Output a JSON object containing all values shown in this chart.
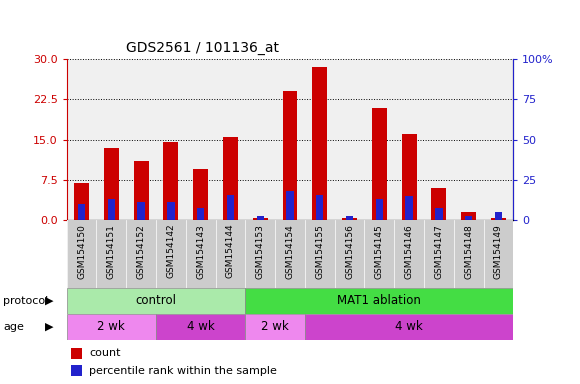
{
  "title": "GDS2561 / 101136_at",
  "samples": [
    "GSM154150",
    "GSM154151",
    "GSM154152",
    "GSM154142",
    "GSM154143",
    "GSM154144",
    "GSM154153",
    "GSM154154",
    "GSM154155",
    "GSM154156",
    "GSM154145",
    "GSM154146",
    "GSM154147",
    "GSM154148",
    "GSM154149"
  ],
  "count_values": [
    7.0,
    13.5,
    11.0,
    14.5,
    9.5,
    15.5,
    0.5,
    24.0,
    28.5,
    0.5,
    21.0,
    16.0,
    6.0,
    1.5,
    0.5
  ],
  "percentile_values": [
    10.0,
    13.0,
    11.5,
    11.5,
    8.0,
    16.0,
    3.0,
    18.0,
    16.0,
    3.0,
    13.0,
    15.0,
    8.0,
    3.0,
    5.0
  ],
  "red_color": "#cc0000",
  "blue_color": "#2222cc",
  "ylim_left": [
    0,
    30
  ],
  "ylim_right": [
    0,
    100
  ],
  "yticks_left": [
    0,
    7.5,
    15,
    22.5,
    30
  ],
  "yticks_right": [
    0,
    25,
    50,
    75,
    100
  ],
  "protocol_groups": [
    {
      "label": "control",
      "start": 0,
      "end": 6,
      "color": "#aaeaaa"
    },
    {
      "label": "MAT1 ablation",
      "start": 6,
      "end": 15,
      "color": "#44dd44"
    }
  ],
  "age_groups": [
    {
      "label": "2 wk",
      "start": 0,
      "end": 3,
      "color": "#ee88ee"
    },
    {
      "label": "4 wk",
      "start": 3,
      "end": 6,
      "color": "#cc44cc"
    },
    {
      "label": "2 wk",
      "start": 6,
      "end": 8,
      "color": "#ee88ee"
    },
    {
      "label": "4 wk",
      "start": 8,
      "end": 15,
      "color": "#cc44cc"
    }
  ],
  "xticklabel_bg": "#cccccc",
  "plot_bg": "#f0f0f0",
  "legend_count_label": "count",
  "legend_pct_label": "percentile rank within the sample",
  "protocol_label": "protocol",
  "age_label": "age",
  "bar_width": 0.5,
  "blue_bar_width": 0.25
}
